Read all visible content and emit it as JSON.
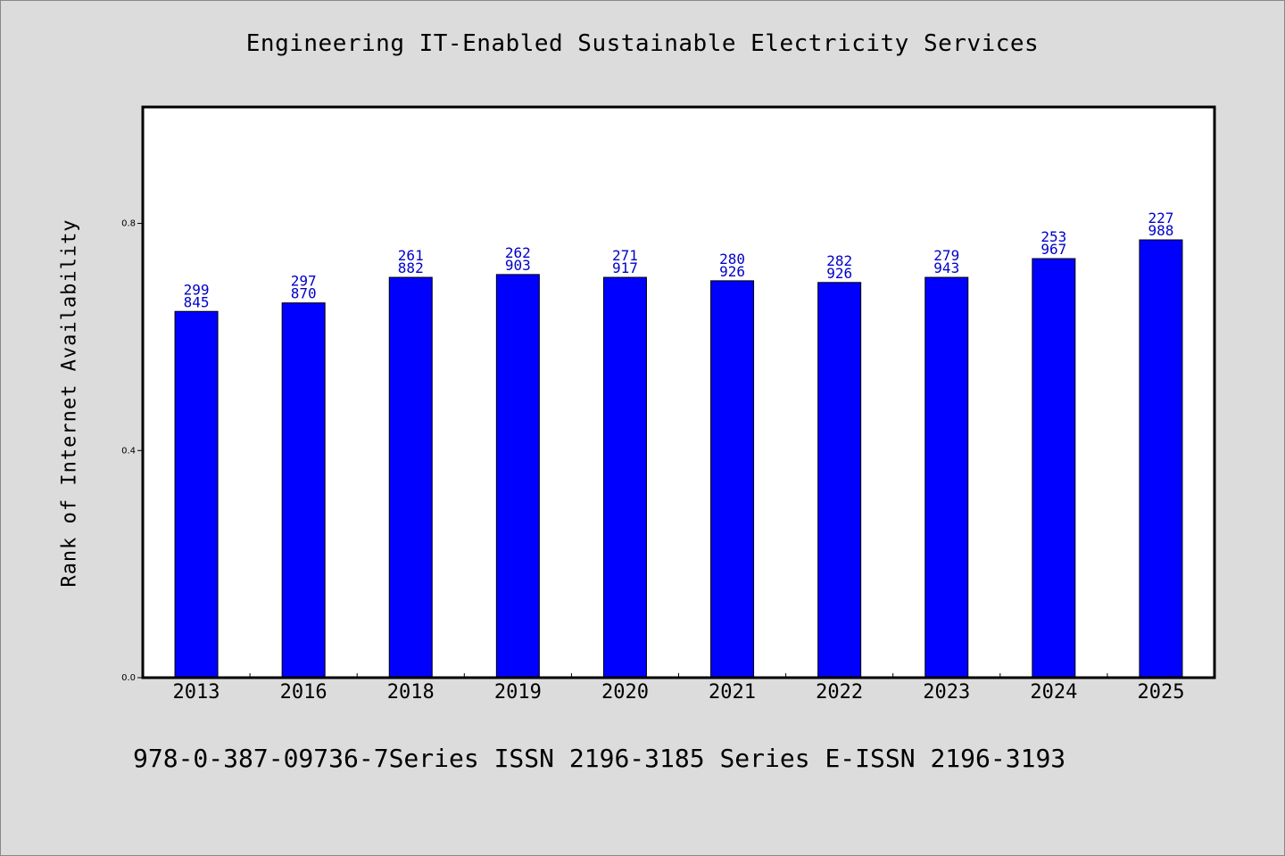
{
  "title": "Engineering IT-Enabled Sustainable Electricity Services",
  "footer": "978-0-387-09736-7Series ISSN 2196-3185 Series E-ISSN 2196-3193",
  "colors": {
    "bar": "#0000ff",
    "bar_stroke": "#000000",
    "label": "#0000c8",
    "plot_bg": "#ffffff",
    "page_bg": "#dcdcdc"
  },
  "chart_data": {
    "type": "bar",
    "title": "Engineering IT-Enabled Sustainable Electricity Services",
    "xlabel": "",
    "ylabel": "Rank of Internet Availability",
    "categories": [
      "2013",
      "2016",
      "2018",
      "2019",
      "2020",
      "2021",
      "2022",
      "2023",
      "2024",
      "2025"
    ],
    "values": [
      0.645,
      0.66,
      0.705,
      0.71,
      0.705,
      0.699,
      0.696,
      0.705,
      0.738,
      0.771
    ],
    "bar_labels": [
      [
        "299",
        "845"
      ],
      [
        "297",
        "870"
      ],
      [
        "261",
        "882"
      ],
      [
        "262",
        "903"
      ],
      [
        "271",
        "917"
      ],
      [
        "280",
        "926"
      ],
      [
        "282",
        "926"
      ],
      [
        "279",
        "943"
      ],
      [
        "253",
        "967"
      ],
      [
        "227",
        "988"
      ]
    ],
    "yticks": [
      "0.0",
      "0.4",
      "0.8"
    ],
    "ytick_values": [
      0.0,
      0.4,
      0.8
    ],
    "ylim": [
      0,
      1.005
    ],
    "grid": false,
    "legend": "none"
  }
}
